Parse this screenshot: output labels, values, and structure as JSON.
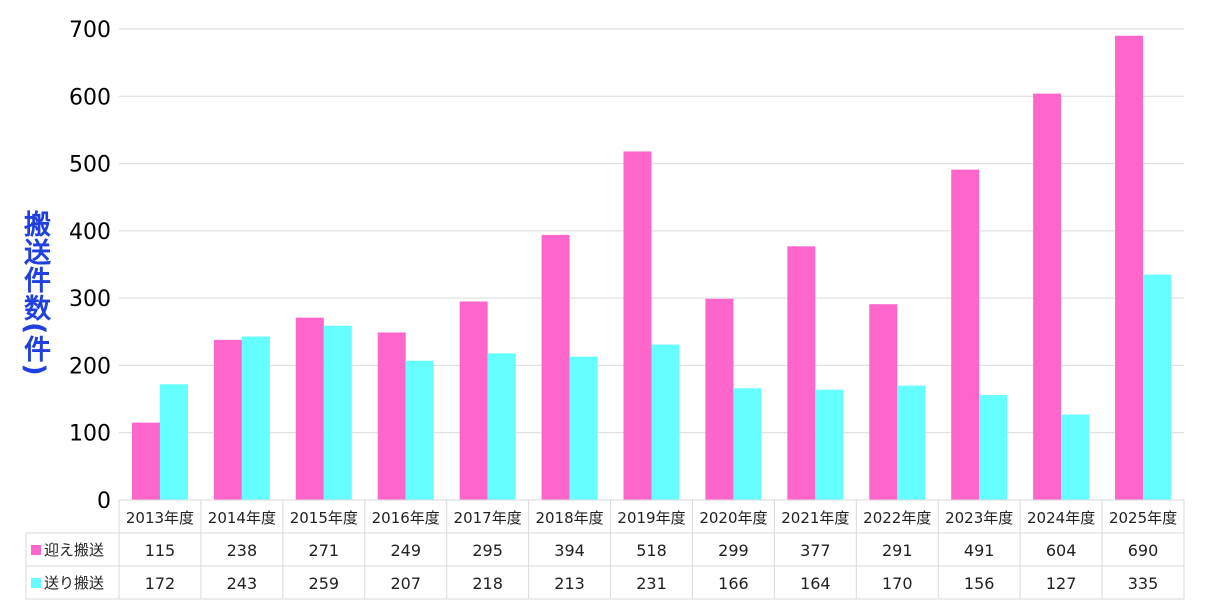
{
  "chart_data": {
    "type": "bar",
    "ylabel": "搬送件数(件)",
    "ylim": [
      0,
      700
    ],
    "yticks": [
      0,
      100,
      200,
      300,
      400,
      500,
      600,
      700
    ],
    "categories": [
      "2013年度",
      "2014年度",
      "2015年度",
      "2016年度",
      "2017年度",
      "2018年度",
      "2019年度",
      "2020年度",
      "2021年度",
      "2022年度",
      "2023年度",
      "2024年度",
      "2025年度"
    ],
    "series": [
      {
        "name": "迎え搬送",
        "color": "#ff66cc",
        "values": [
          115,
          238,
          271,
          249,
          295,
          394,
          518,
          299,
          377,
          291,
          491,
          604,
          690
        ]
      },
      {
        "name": "送り搬送",
        "color": "#66ffff",
        "values": [
          172,
          243,
          259,
          207,
          218,
          213,
          231,
          166,
          164,
          170,
          156,
          127,
          335
        ]
      }
    ],
    "grid": true,
    "legend": "data-table"
  }
}
